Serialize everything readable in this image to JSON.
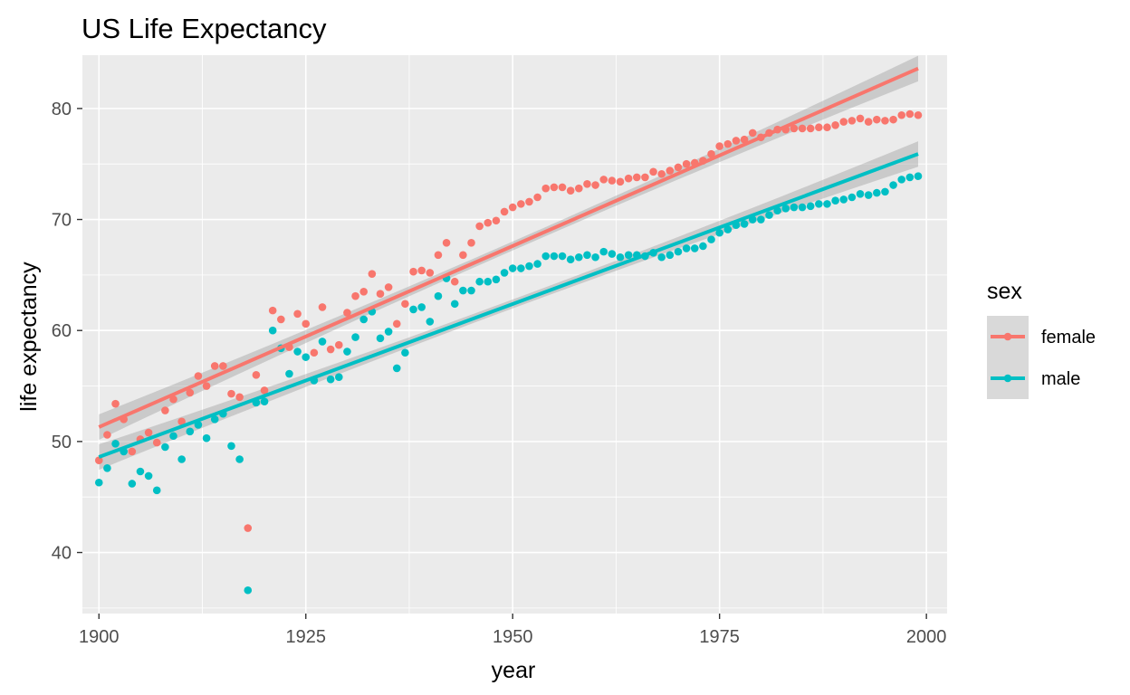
{
  "chart_data": {
    "type": "scatter",
    "title": "US Life Expectancy",
    "xlabel": "year",
    "ylabel": "life expectancy",
    "xlim": [
      1898,
      2002.5
    ],
    "ylim": [
      34.5,
      84.8
    ],
    "x_ticks": [
      1900,
      1925,
      1950,
      1975,
      2000
    ],
    "x_tick_labels": [
      "1900",
      "1925",
      "1950",
      "1975",
      "2000"
    ],
    "y_ticks": [
      40,
      50,
      60,
      70,
      80
    ],
    "y_tick_labels": [
      "40",
      "50",
      "60",
      "70",
      "80"
    ],
    "grid": true,
    "legend": {
      "title": "sex",
      "position": "right"
    },
    "series": [
      {
        "name": "female",
        "color": "#F8766D",
        "x": [
          1900,
          1901,
          1902,
          1903,
          1904,
          1905,
          1906,
          1907,
          1908,
          1909,
          1910,
          1911,
          1912,
          1913,
          1914,
          1915,
          1916,
          1917,
          1918,
          1919,
          1920,
          1921,
          1922,
          1923,
          1924,
          1925,
          1926,
          1927,
          1928,
          1929,
          1930,
          1931,
          1932,
          1933,
          1934,
          1935,
          1936,
          1937,
          1938,
          1939,
          1940,
          1941,
          1942,
          1943,
          1944,
          1945,
          1946,
          1947,
          1948,
          1949,
          1950,
          1951,
          1952,
          1953,
          1954,
          1955,
          1956,
          1957,
          1958,
          1959,
          1960,
          1961,
          1962,
          1963,
          1964,
          1965,
          1966,
          1967,
          1968,
          1969,
          1970,
          1971,
          1972,
          1973,
          1974,
          1975,
          1976,
          1977,
          1978,
          1979,
          1980,
          1981,
          1982,
          1983,
          1984,
          1985,
          1986,
          1987,
          1988,
          1989,
          1990,
          1991,
          1992,
          1993,
          1994,
          1995,
          1996,
          1997,
          1998,
          1999
        ],
        "y": [
          48.3,
          50.6,
          53.4,
          52.0,
          49.1,
          50.2,
          50.8,
          49.9,
          52.8,
          53.8,
          51.8,
          54.4,
          55.9,
          55.0,
          56.8,
          56.8,
          54.3,
          54.0,
          42.2,
          56.0,
          54.6,
          61.8,
          61.0,
          58.5,
          61.5,
          60.6,
          58.0,
          62.1,
          58.3,
          58.7,
          61.6,
          63.1,
          63.5,
          65.1,
          63.3,
          63.9,
          60.6,
          62.4,
          65.3,
          65.4,
          65.2,
          66.8,
          67.9,
          64.4,
          66.8,
          67.9,
          69.4,
          69.7,
          69.9,
          70.7,
          71.1,
          71.4,
          71.6,
          72.0,
          72.8,
          72.9,
          72.9,
          72.6,
          72.8,
          73.2,
          73.1,
          73.6,
          73.5,
          73.4,
          73.7,
          73.8,
          73.8,
          74.3,
          74.1,
          74.4,
          74.7,
          75.0,
          75.1,
          75.3,
          75.9,
          76.6,
          76.8,
          77.1,
          77.2,
          77.8,
          77.4,
          77.8,
          78.1,
          78.1,
          78.2,
          78.2,
          78.2,
          78.3,
          78.3,
          78.5,
          78.8,
          78.9,
          79.1,
          78.8,
          79.0,
          78.9,
          79.0,
          79.4,
          79.5,
          79.4
        ],
        "fit_start": 51.3,
        "fit_end": 83.6
      },
      {
        "name": "male",
        "color": "#00BFC4",
        "x": [
          1900,
          1901,
          1902,
          1903,
          1904,
          1905,
          1906,
          1907,
          1908,
          1909,
          1910,
          1911,
          1912,
          1913,
          1914,
          1915,
          1916,
          1917,
          1918,
          1919,
          1920,
          1921,
          1922,
          1923,
          1924,
          1925,
          1926,
          1927,
          1928,
          1929,
          1930,
          1931,
          1932,
          1933,
          1934,
          1935,
          1936,
          1937,
          1938,
          1939,
          1940,
          1941,
          1942,
          1943,
          1944,
          1945,
          1946,
          1947,
          1948,
          1949,
          1950,
          1951,
          1952,
          1953,
          1954,
          1955,
          1956,
          1957,
          1958,
          1959,
          1960,
          1961,
          1962,
          1963,
          1964,
          1965,
          1966,
          1967,
          1968,
          1969,
          1970,
          1971,
          1972,
          1973,
          1974,
          1975,
          1976,
          1977,
          1978,
          1979,
          1980,
          1981,
          1982,
          1983,
          1984,
          1985,
          1986,
          1987,
          1988,
          1989,
          1990,
          1991,
          1992,
          1993,
          1994,
          1995,
          1996,
          1997,
          1998,
          1999
        ],
        "y": [
          46.3,
          47.6,
          49.8,
          49.1,
          46.2,
          47.3,
          46.9,
          45.6,
          49.5,
          50.5,
          48.4,
          50.9,
          51.5,
          50.3,
          52.0,
          52.5,
          49.6,
          48.4,
          36.6,
          53.5,
          53.6,
          60.0,
          58.4,
          56.1,
          58.1,
          57.6,
          55.5,
          59.0,
          55.6,
          55.8,
          58.1,
          59.4,
          61.0,
          61.7,
          59.3,
          59.9,
          56.6,
          58.0,
          61.9,
          62.1,
          60.8,
          63.1,
          64.7,
          62.4,
          63.6,
          63.6,
          64.4,
          64.4,
          64.6,
          65.2,
          65.6,
          65.6,
          65.8,
          66.0,
          66.7,
          66.7,
          66.7,
          66.4,
          66.6,
          66.8,
          66.6,
          67.1,
          66.9,
          66.6,
          66.8,
          66.8,
          66.7,
          67.0,
          66.6,
          66.8,
          67.1,
          67.4,
          67.4,
          67.6,
          68.2,
          68.8,
          69.1,
          69.5,
          69.6,
          70.0,
          70.0,
          70.4,
          70.8,
          71.0,
          71.1,
          71.1,
          71.2,
          71.4,
          71.4,
          71.7,
          71.8,
          72.0,
          72.3,
          72.2,
          72.4,
          72.5,
          73.1,
          73.6,
          73.8,
          73.9
        ],
        "fit_start": 48.6,
        "fit_end": 75.9
      }
    ]
  }
}
